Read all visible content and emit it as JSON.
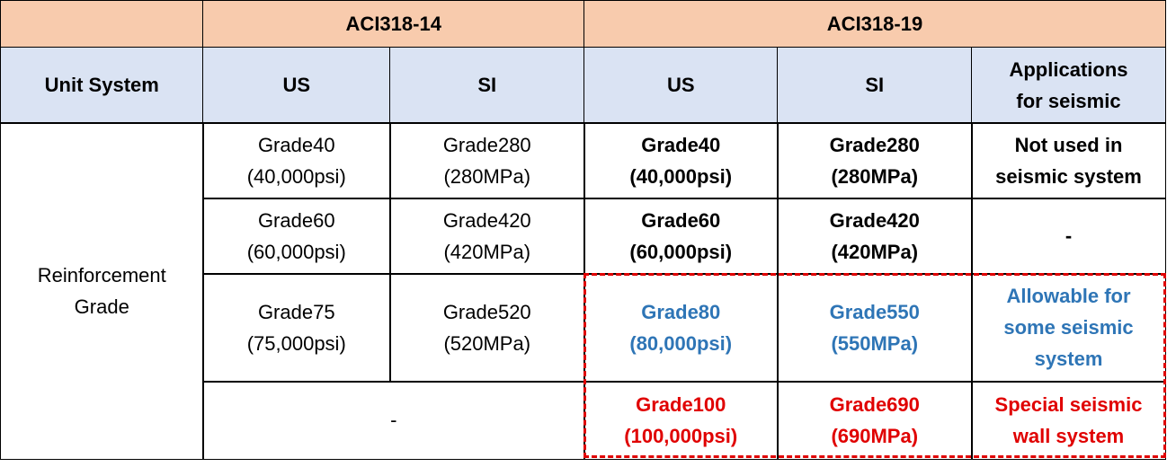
{
  "header": {
    "groups": [
      "ACI318-14",
      "ACI318-19"
    ],
    "columns": [
      [
        "Unit System"
      ],
      [
        "US"
      ],
      [
        "SI"
      ],
      [
        "US"
      ],
      [
        "SI"
      ],
      [
        "Applications",
        "for seismic"
      ]
    ]
  },
  "row_label": [
    "Reinforcement",
    "Grade"
  ],
  "rows": [
    {
      "cells": [
        [
          "Grade40",
          "(40,000psi)"
        ],
        [
          "Grade280",
          "(280MPa)"
        ],
        [
          "Grade40",
          "(40,000psi)"
        ],
        [
          "Grade280",
          "(280MPa)"
        ],
        [
          "Not used in",
          "seismic system"
        ]
      ]
    },
    {
      "cells": [
        [
          "Grade60",
          "(60,000psi)"
        ],
        [
          "Grade420",
          "(420MPa)"
        ],
        [
          "Grade60",
          "(60,000psi)"
        ],
        [
          "Grade420",
          "(420MPa)"
        ],
        [
          "-"
        ]
      ]
    },
    {
      "cells": [
        [
          "Grade75",
          "(75,000psi)"
        ],
        [
          "Grade520",
          "(520MPa)"
        ],
        [
          "Grade80",
          "(80,000psi)"
        ],
        [
          "Grade550",
          "(550MPa)"
        ],
        [
          "Allowable for",
          "some seismic",
          "system"
        ]
      ],
      "color": "#2e75b6"
    },
    {
      "cells": [
        [
          "-"
        ],
        [
          "Grade100",
          "(100,000psi)"
        ],
        [
          "Grade690",
          "(690MPa)"
        ],
        [
          "Special seismic",
          "wall system"
        ]
      ],
      "color": "#e00000"
    }
  ]
}
